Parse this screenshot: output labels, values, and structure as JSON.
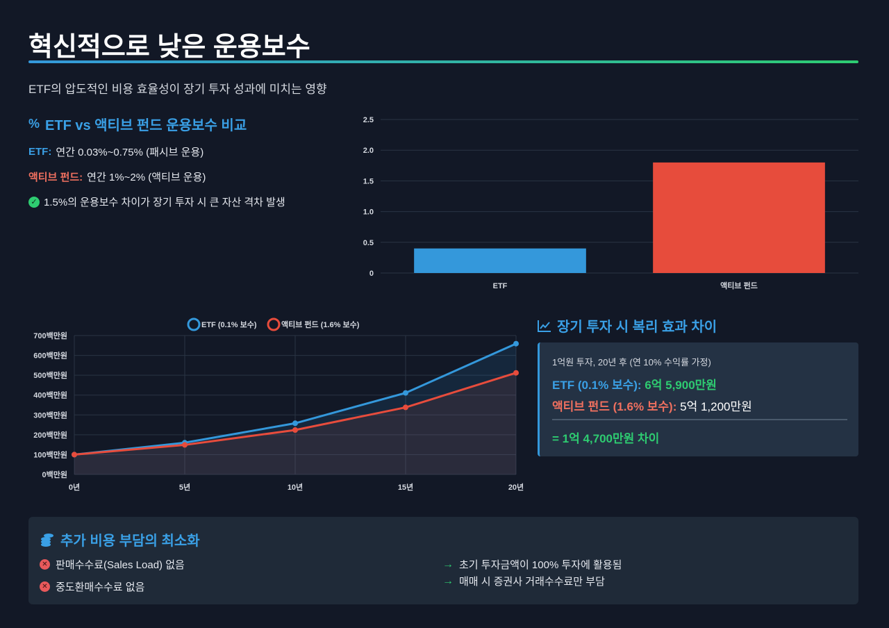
{
  "header": {
    "title": "혁신적으로 낮은 운용보수",
    "subtitle": "ETF의 압도적인 비용 효율성이 장기 투자 성과에 미치는 영향"
  },
  "fee_section": {
    "heading": "ETF vs 액티브 펀드 운용보수 비교",
    "etf_label": "ETF:",
    "etf_text": "연간 0.03%~0.75% (패시브 운용)",
    "active_label": "액티브 펀드:",
    "active_text": "연간 1%~2% (액티브 운용)",
    "note": "1.5%의 운용보수 차이가 장기 투자 시 큰 자산 격차 발생"
  },
  "compound_section": {
    "heading": "장기 투자 시 복리 효과 차이",
    "caption": "1억원 투자, 20년 후 (연 10% 수익률 가정)",
    "etf_label": "ETF (0.1% 보수):",
    "etf_value": "6억 5,900만원",
    "active_label": "액티브 펀드 (1.6% 보수):",
    "active_value": "5억 1,200만원",
    "diff": "= 1억 4,700만원 차이"
  },
  "cost_section": {
    "heading": "추가 비용 부담의 최소화",
    "items_left": [
      "판매수수료(Sales Load) 없음",
      "중도환매수수료 없음"
    ],
    "items_right": [
      "초기 투자금액이 100% 투자에 활용됨",
      "매매 시 증권사 거래수수료만 부담"
    ]
  },
  "colors": {
    "etf": "#3498db",
    "active": "#e74c3c",
    "accent_green": "#2ecc71"
  },
  "chart_data": [
    {
      "type": "bar",
      "categories": [
        "ETF",
        "액티브 펀드"
      ],
      "values": [
        0.4,
        1.8
      ],
      "ylim": [
        0,
        2.5
      ],
      "yticks": [
        0,
        0.5,
        1.0,
        1.5,
        2.0,
        2.5
      ],
      "ytick_labels": [
        "0",
        "0.5",
        "1.0",
        "1.5",
        "2.0",
        "2.5"
      ],
      "title": "",
      "xlabel": "",
      "ylabel": ""
    },
    {
      "type": "line",
      "categories": [
        "0년",
        "5년",
        "10년",
        "15년",
        "20년"
      ],
      "series": [
        {
          "name": "ETF (0.1% 보수)",
          "values": [
            100,
            160,
            258,
            411,
            659
          ]
        },
        {
          "name": "액티브 펀드 (1.6% 보수)",
          "values": [
            100,
            149,
            224,
            338,
            512
          ]
        }
      ],
      "ylim": [
        0,
        700
      ],
      "yticks": [
        0,
        100,
        200,
        300,
        400,
        500,
        600,
        700
      ],
      "ytick_labels": [
        "0백만원",
        "100백만원",
        "200백만원",
        "300백만원",
        "400백만원",
        "500백만원",
        "600백만원",
        "700백만원"
      ],
      "legend": "top-center",
      "title": "",
      "xlabel": "",
      "ylabel": ""
    }
  ]
}
